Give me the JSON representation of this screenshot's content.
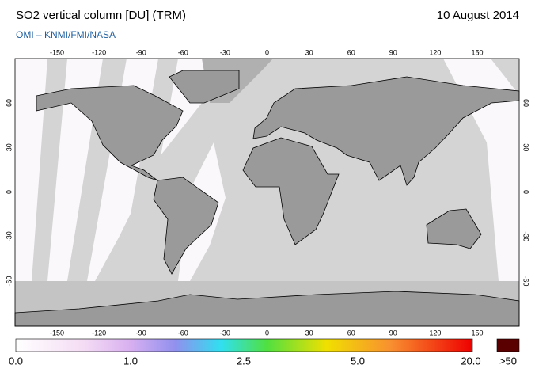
{
  "header": {
    "title": "SO2 vertical column [DU] (TRM)",
    "date": "10 August 2014",
    "credit": "OMI  –  KNMI/FMI/NASA"
  },
  "map": {
    "lon_ticks": [
      -150,
      -120,
      -90,
      -60,
      -30,
      0,
      30,
      60,
      90,
      120,
      150
    ],
    "lat_ticks": [
      60,
      30,
      0,
      -30,
      -60
    ]
  },
  "colorbar": {
    "labels": [
      "0.0",
      "1.0",
      "2.5",
      "5.0",
      "20.0",
      ">50"
    ]
  }
}
